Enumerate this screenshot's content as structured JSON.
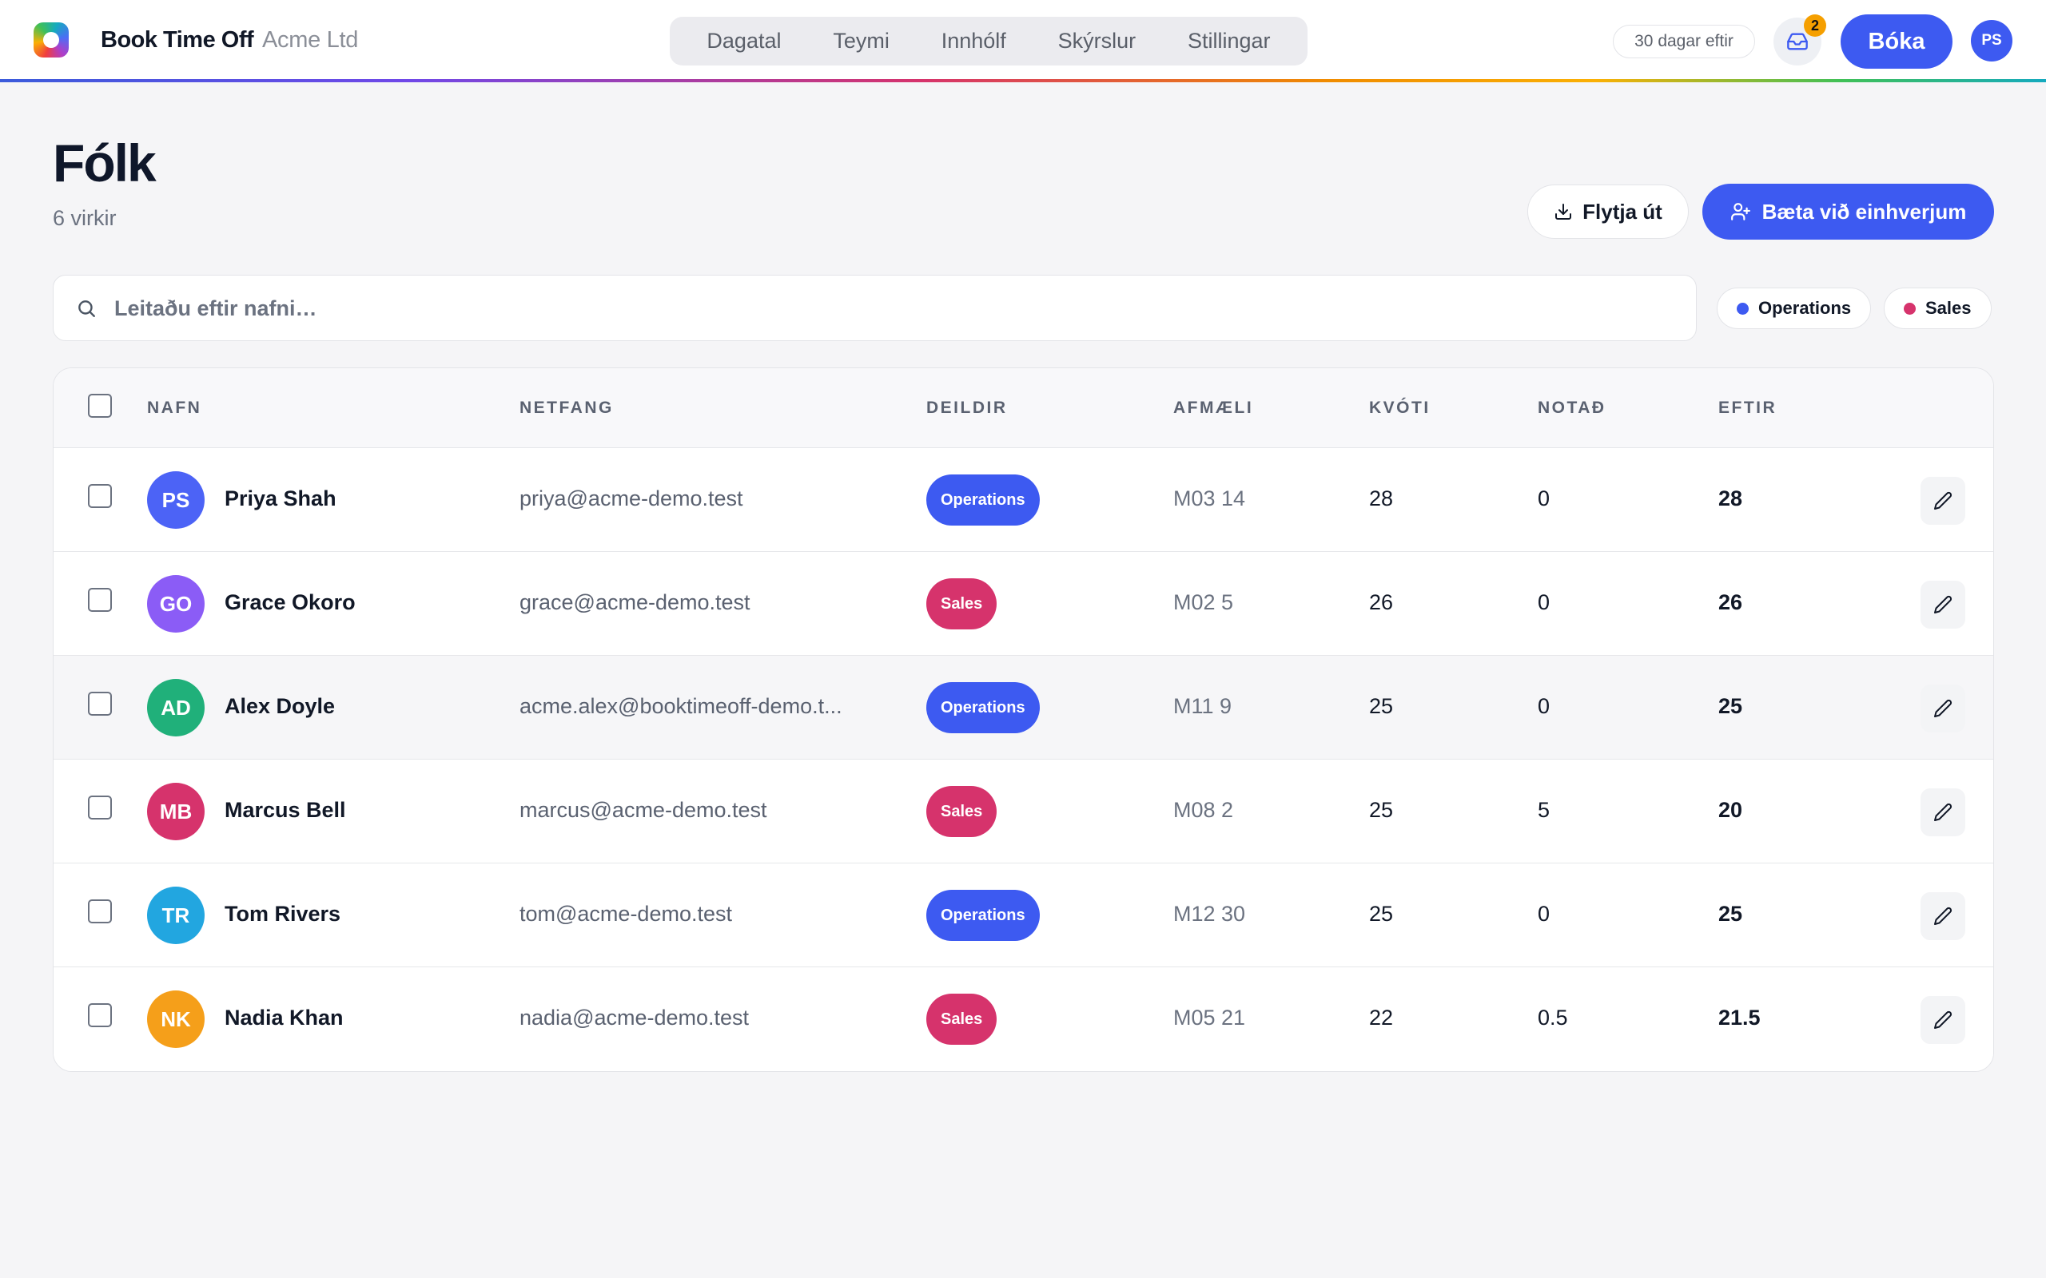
{
  "header": {
    "brand": "Book Time Off",
    "org": "Acme Ltd",
    "nav": [
      "Dagatal",
      "Teymi",
      "Innhólf",
      "Skýrslur",
      "Stillingar"
    ],
    "trial": "30 dagar eftir",
    "inbox_count": "2",
    "book_label": "Bóka",
    "user_initials": "PS"
  },
  "page": {
    "title": "Fólk",
    "subtitle": "6 virkir",
    "export_label": "Flytja út",
    "add_label": "Bæta við einhverjum"
  },
  "search": {
    "placeholder": "Leitaðu eftir nafni…",
    "value": ""
  },
  "filters": [
    {
      "label": "Operations",
      "color": "#3d5af1"
    },
    {
      "label": "Sales",
      "color": "#d6336c"
    }
  ],
  "table": {
    "columns": [
      "NAFN",
      "NETFANG",
      "DEILDIR",
      "AFMÆLI",
      "KVÓTI",
      "NOTAÐ",
      "EFTIR"
    ],
    "rows": [
      {
        "initials": "PS",
        "avatar_color": "#4c63f6",
        "name": "Priya Shah",
        "email": "priya@acme-demo.test",
        "dept": "Operations",
        "dept_color": "#3d5af1",
        "birthday": "M03 14",
        "quota": "28",
        "used": "0",
        "left": "28"
      },
      {
        "initials": "GO",
        "avatar_color": "#8b5cf6",
        "name": "Grace Okoro",
        "email": "grace@acme-demo.test",
        "dept": "Sales",
        "dept_color": "#d6336c",
        "birthday": "M02 5",
        "quota": "26",
        "used": "0",
        "left": "26"
      },
      {
        "initials": "AD",
        "avatar_color": "#20b07a",
        "name": "Alex Doyle",
        "email": "acme.alex@booktimeoff-demo.t...",
        "dept": "Operations",
        "dept_color": "#3d5af1",
        "birthday": "M11 9",
        "quota": "25",
        "used": "0",
        "left": "25"
      },
      {
        "initials": "MB",
        "avatar_color": "#d6336c",
        "name": "Marcus Bell",
        "email": "marcus@acme-demo.test",
        "dept": "Sales",
        "dept_color": "#d6336c",
        "birthday": "M08 2",
        "quota": "25",
        "used": "5",
        "left": "20"
      },
      {
        "initials": "TR",
        "avatar_color": "#22a6e0",
        "name": "Tom Rivers",
        "email": "tom@acme-demo.test",
        "dept": "Operations",
        "dept_color": "#3d5af1",
        "birthday": "M12 30",
        "quota": "25",
        "used": "0",
        "left": "25"
      },
      {
        "initials": "NK",
        "avatar_color": "#f59f1a",
        "name": "Nadia Khan",
        "email": "nadia@acme-demo.test",
        "dept": "Sales",
        "dept_color": "#d6336c",
        "birthday": "M05 21",
        "quota": "22",
        "used": "0.5",
        "left": "21.5"
      }
    ]
  }
}
